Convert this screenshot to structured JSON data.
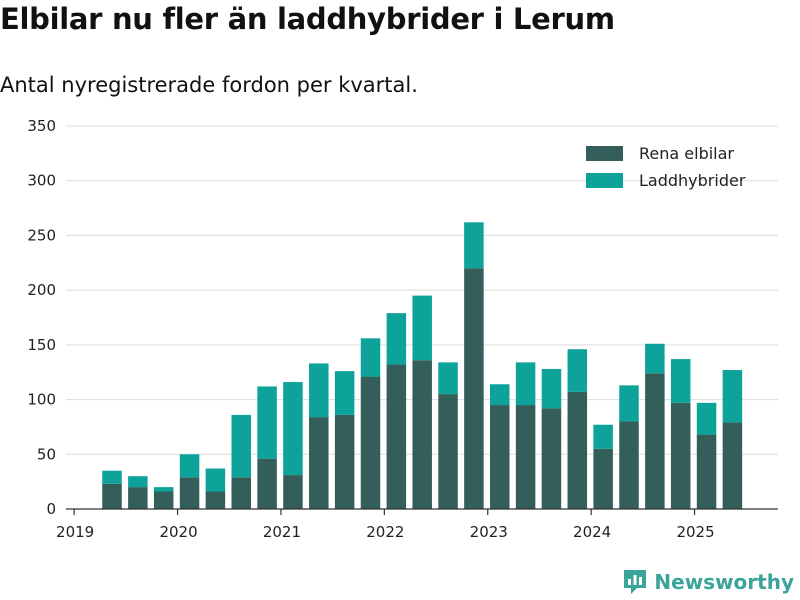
{
  "title": "Elbilar nu fler än laddhybrider i Lerum",
  "subtitle": "Antal nyregistrerade fordon per kvartal.",
  "brand": {
    "name": "Newsworthy"
  },
  "colors": {
    "electric": "#335e5a",
    "hybrid": "#0ea39a",
    "grid": "#dcdcdc",
    "axis": "#333333",
    "brand": "#3aa39a"
  },
  "chart_data": {
    "type": "bar",
    "stacked": true,
    "categories": [
      "2019-Q2",
      "2019-Q3",
      "2019-Q4",
      "2020-Q1",
      "2020-Q2",
      "2020-Q3",
      "2020-Q4",
      "2021-Q1",
      "2021-Q2",
      "2021-Q3",
      "2021-Q4",
      "2022-Q1",
      "2022-Q2",
      "2022-Q3",
      "2022-Q4",
      "2023-Q1",
      "2023-Q2",
      "2023-Q3",
      "2023-Q4",
      "2024-Q1",
      "2024-Q2",
      "2024-Q3",
      "2024-Q4",
      "2025-Q1",
      "2025-Q2"
    ],
    "series": [
      {
        "name": "Rena elbilar",
        "color": "#335e5a",
        "values": [
          23,
          20,
          16,
          29,
          16,
          29,
          46,
          31,
          84,
          86,
          121,
          132,
          136,
          105,
          220,
          95,
          95,
          92,
          107,
          55,
          80,
          124,
          97,
          68,
          79
        ]
      },
      {
        "name": "Laddhybrider",
        "color": "#0ea39a",
        "values": [
          12,
          10,
          4,
          21,
          21,
          57,
          66,
          85,
          49,
          40,
          35,
          47,
          59,
          29,
          42,
          19,
          39,
          36,
          39,
          22,
          33,
          27,
          40,
          29,
          48
        ]
      }
    ],
    "xticks": [
      "2019",
      "2020",
      "2021",
      "2022",
      "2023",
      "2024",
      "2025"
    ],
    "yticks": [
      0,
      50,
      100,
      150,
      200,
      250,
      300,
      350
    ],
    "ylim": [
      0,
      350
    ],
    "grid": true,
    "legend": "top-right",
    "xlabel": "",
    "ylabel": ""
  }
}
